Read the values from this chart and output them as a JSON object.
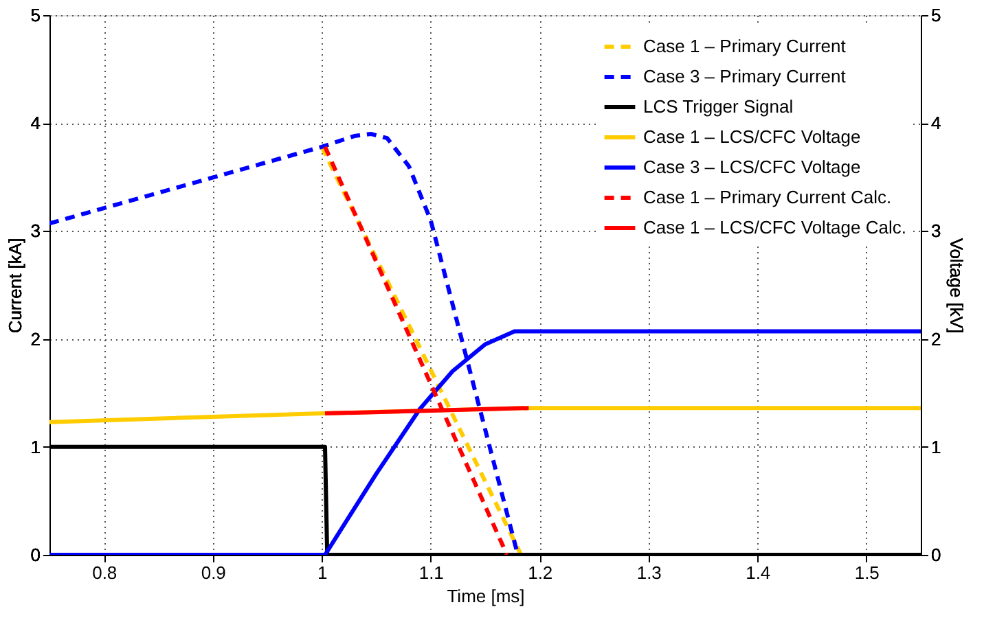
{
  "chart_data": {
    "type": "line",
    "xlabel": "Time [ms]",
    "ylabel": "Current [kA]",
    "y2label": "Voltage [kV]",
    "xlim": [
      0.75,
      1.55
    ],
    "xticks": [
      0.8,
      0.9,
      1,
      1.1,
      1.2,
      1.3,
      1.4,
      1.5
    ],
    "ylim": [
      0,
      5
    ],
    "yticks": [
      0,
      1,
      2,
      3,
      4,
      5
    ],
    "y2lim": [
      0,
      5
    ],
    "y2ticks": [
      0,
      1,
      2,
      3,
      4,
      5
    ],
    "grid": true,
    "legend": "top right",
    "marker": "none",
    "series": [
      {
        "name": "Case 1 – Primary Current",
        "color": "#ffcc00",
        "line_style": "dashed",
        "x": [
          1.0,
          1.183,
          1.55
        ],
        "values": [
          3.78,
          0,
          0
        ]
      },
      {
        "name": "Case 3 – Primary Current",
        "color": "#0000ff",
        "line_style": "dashed",
        "x": [
          0.75,
          1.0,
          1.03,
          1.045,
          1.06,
          1.08,
          1.1,
          1.18,
          1.55
        ],
        "values": [
          3.07,
          3.78,
          3.88,
          3.9,
          3.86,
          3.6,
          3.1,
          0,
          0
        ]
      },
      {
        "name": "LCS Trigger Signal",
        "color": "#000000",
        "line_style": "solid",
        "x": [
          0.75,
          1.003,
          1.005,
          1.55
        ],
        "values": [
          1,
          1,
          0,
          0
        ]
      },
      {
        "name": "Case 1 – LCS/CFC Voltage",
        "color": "#ffcc00",
        "line_style": "solid",
        "axis": "y2",
        "x": [
          0.75,
          1.0,
          1.19,
          1.55
        ],
        "values": [
          1.23,
          1.31,
          1.36,
          1.36
        ]
      },
      {
        "name": "Case 3 – LCS/CFC Voltage",
        "color": "#0000ff",
        "line_style": "solid",
        "axis": "y2",
        "x": [
          0.75,
          1.003,
          1.05,
          1.09,
          1.12,
          1.15,
          1.177,
          1.55
        ],
        "values": [
          0,
          0,
          0.75,
          1.35,
          1.7,
          1.95,
          2.07,
          2.07
        ]
      },
      {
        "name": "Case 1 – Primary Current Calc.",
        "color": "#ff0000",
        "line_style": "dashed",
        "x": [
          1.003,
          1.17
        ],
        "values": [
          3.78,
          0
        ]
      },
      {
        "name": "Case 1 – LCS/CFC Voltage Calc.",
        "color": "#ff0000",
        "line_style": "solid",
        "axis": "y2",
        "x": [
          1.003,
          1.19
        ],
        "values": [
          1.31,
          1.36
        ]
      }
    ]
  }
}
